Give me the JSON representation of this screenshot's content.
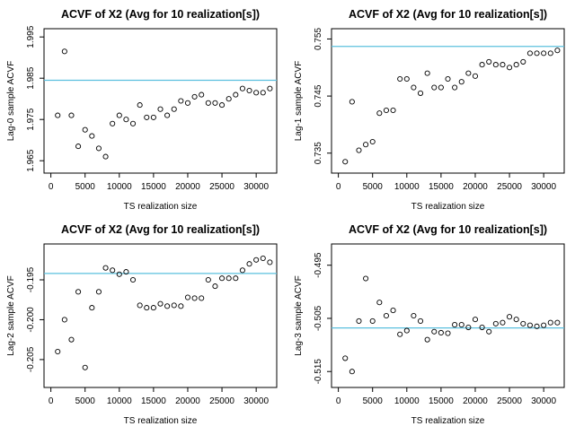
{
  "figure": {
    "background": "#ffffff",
    "reference_line_color": "#5bc0de",
    "point_style": "open-circle"
  },
  "chart_data": [
    {
      "type": "scatter",
      "title": "ACVF of X2 (Avg for 10 realization[s])",
      "xlabel": "TS realization size",
      "ylabel": "Lag-0 sample ACVF",
      "xlim": [
        -1000,
        33000
      ],
      "ylim": [
        1.962,
        1.997
      ],
      "xticks": [
        0,
        5000,
        10000,
        15000,
        20000,
        25000,
        30000
      ],
      "yticks": [
        1.965,
        1.975,
        1.985,
        1.995
      ],
      "reference_line": 1.9845,
      "points": [
        [
          1000,
          1.976
        ],
        [
          2000,
          1.9915
        ],
        [
          3000,
          1.976
        ],
        [
          4000,
          1.9685
        ],
        [
          5000,
          1.9725
        ],
        [
          6000,
          1.971
        ],
        [
          7000,
          1.968
        ],
        [
          8000,
          1.966
        ],
        [
          9000,
          1.974
        ],
        [
          10000,
          1.976
        ],
        [
          11000,
          1.975
        ],
        [
          12000,
          1.974
        ],
        [
          13000,
          1.9785
        ],
        [
          14000,
          1.9755
        ],
        [
          15000,
          1.9755
        ],
        [
          16000,
          1.9775
        ],
        [
          17000,
          1.976
        ],
        [
          18000,
          1.9775
        ],
        [
          19000,
          1.9795
        ],
        [
          20000,
          1.979
        ],
        [
          21000,
          1.9805
        ],
        [
          22000,
          1.981
        ],
        [
          23000,
          1.979
        ],
        [
          24000,
          1.979
        ],
        [
          25000,
          1.9785
        ],
        [
          26000,
          1.98
        ],
        [
          27000,
          1.981
        ],
        [
          28000,
          1.9825
        ],
        [
          29000,
          1.982
        ],
        [
          30000,
          1.9815
        ],
        [
          31000,
          1.9815
        ],
        [
          32000,
          1.9825
        ]
      ]
    },
    {
      "type": "scatter",
      "title": "ACVF of X2 (Avg for 10 realization[s])",
      "xlabel": "TS realization size",
      "ylabel": "Lag-1 sample ACVF",
      "xlim": [
        -1000,
        33000
      ],
      "ylim": [
        0.7315,
        0.7568
      ],
      "xticks": [
        0,
        5000,
        10000,
        15000,
        20000,
        25000,
        30000
      ],
      "yticks": [
        0.735,
        0.745,
        0.755
      ],
      "reference_line": 0.7537,
      "points": [
        [
          1000,
          0.7335
        ],
        [
          2000,
          0.744
        ],
        [
          3000,
          0.7355
        ],
        [
          4000,
          0.7365
        ],
        [
          5000,
          0.737
        ],
        [
          6000,
          0.742
        ],
        [
          7000,
          0.7425
        ],
        [
          8000,
          0.7425
        ],
        [
          9000,
          0.748
        ],
        [
          10000,
          0.748
        ],
        [
          11000,
          0.7465
        ],
        [
          12000,
          0.7455
        ],
        [
          13000,
          0.749
        ],
        [
          14000,
          0.7465
        ],
        [
          15000,
          0.7465
        ],
        [
          16000,
          0.748
        ],
        [
          17000,
          0.7465
        ],
        [
          18000,
          0.7475
        ],
        [
          19000,
          0.749
        ],
        [
          20000,
          0.7485
        ],
        [
          21000,
          0.7505
        ],
        [
          22000,
          0.751
        ],
        [
          23000,
          0.7505
        ],
        [
          24000,
          0.7505
        ],
        [
          25000,
          0.75
        ],
        [
          26000,
          0.7505
        ],
        [
          27000,
          0.751
        ],
        [
          28000,
          0.7525
        ],
        [
          29000,
          0.7525
        ],
        [
          30000,
          0.7525
        ],
        [
          31000,
          0.7525
        ],
        [
          32000,
          0.753
        ]
      ]
    },
    {
      "type": "scatter",
      "title": "ACVF of X2 (Avg for 10 realization[s])",
      "xlabel": "TS realization size",
      "ylabel": "Lag-2 sample ACVF",
      "xlim": [
        -1000,
        33000
      ],
      "ylim": [
        -0.2085,
        -0.1905
      ],
      "xticks": [
        0,
        5000,
        10000,
        15000,
        20000,
        25000,
        30000
      ],
      "yticks": [
        -0.205,
        -0.2,
        -0.195
      ],
      "yticklabels": [
        "-0.205",
        "-0.200",
        "-0.195"
      ],
      "reference_line": -0.1942,
      "points": [
        [
          1000,
          -0.204
        ],
        [
          2000,
          -0.2
        ],
        [
          3000,
          -0.2025
        ],
        [
          4000,
          -0.1965
        ],
        [
          5000,
          -0.206
        ],
        [
          6000,
          -0.1985
        ],
        [
          7000,
          -0.1965
        ],
        [
          8000,
          -0.1935
        ],
        [
          9000,
          -0.1938
        ],
        [
          10000,
          -0.1943
        ],
        [
          11000,
          -0.194
        ],
        [
          12000,
          -0.195
        ],
        [
          13000,
          -0.1982
        ],
        [
          14000,
          -0.1985
        ],
        [
          15000,
          -0.1985
        ],
        [
          16000,
          -0.198
        ],
        [
          17000,
          -0.1983
        ],
        [
          18000,
          -0.1982
        ],
        [
          19000,
          -0.1983
        ],
        [
          20000,
          -0.1972
        ],
        [
          21000,
          -0.1973
        ],
        [
          22000,
          -0.1973
        ],
        [
          23000,
          -0.195
        ],
        [
          24000,
          -0.1958
        ],
        [
          25000,
          -0.1948
        ],
        [
          26000,
          -0.1948
        ],
        [
          27000,
          -0.1948
        ],
        [
          28000,
          -0.1938
        ],
        [
          29000,
          -0.193
        ],
        [
          30000,
          -0.1925
        ],
        [
          31000,
          -0.1923
        ],
        [
          32000,
          -0.1928
        ]
      ]
    },
    {
      "type": "scatter",
      "title": "ACVF of X2 (Avg for 10 realization[s])",
      "xlabel": "TS realization size",
      "ylabel": "Lag-3 sample ACVF",
      "xlim": [
        -1000,
        33000
      ],
      "ylim": [
        -0.518,
        -0.491
      ],
      "xticks": [
        0,
        5000,
        10000,
        15000,
        20000,
        25000,
        30000
      ],
      "yticks": [
        -0.515,
        -0.505,
        -0.495
      ],
      "reference_line": -0.5068,
      "points": [
        [
          1000,
          -0.5125
        ],
        [
          2000,
          -0.515
        ],
        [
          3000,
          -0.5055
        ],
        [
          4000,
          -0.4975
        ],
        [
          5000,
          -0.5055
        ],
        [
          6000,
          -0.502
        ],
        [
          7000,
          -0.5045
        ],
        [
          8000,
          -0.5035
        ],
        [
          9000,
          -0.508
        ],
        [
          10000,
          -0.5073
        ],
        [
          11000,
          -0.5045
        ],
        [
          12000,
          -0.5055
        ],
        [
          13000,
          -0.509
        ],
        [
          14000,
          -0.5075
        ],
        [
          15000,
          -0.5077
        ],
        [
          16000,
          -0.5078
        ],
        [
          17000,
          -0.5062
        ],
        [
          18000,
          -0.5062
        ],
        [
          19000,
          -0.5067
        ],
        [
          20000,
          -0.5052
        ],
        [
          21000,
          -0.5067
        ],
        [
          22000,
          -0.5075
        ],
        [
          23000,
          -0.506
        ],
        [
          24000,
          -0.5058
        ],
        [
          25000,
          -0.5047
        ],
        [
          26000,
          -0.5052
        ],
        [
          27000,
          -0.506
        ],
        [
          28000,
          -0.5063
        ],
        [
          29000,
          -0.5065
        ],
        [
          30000,
          -0.5063
        ],
        [
          31000,
          -0.5058
        ],
        [
          32000,
          -0.5058
        ]
      ]
    }
  ]
}
